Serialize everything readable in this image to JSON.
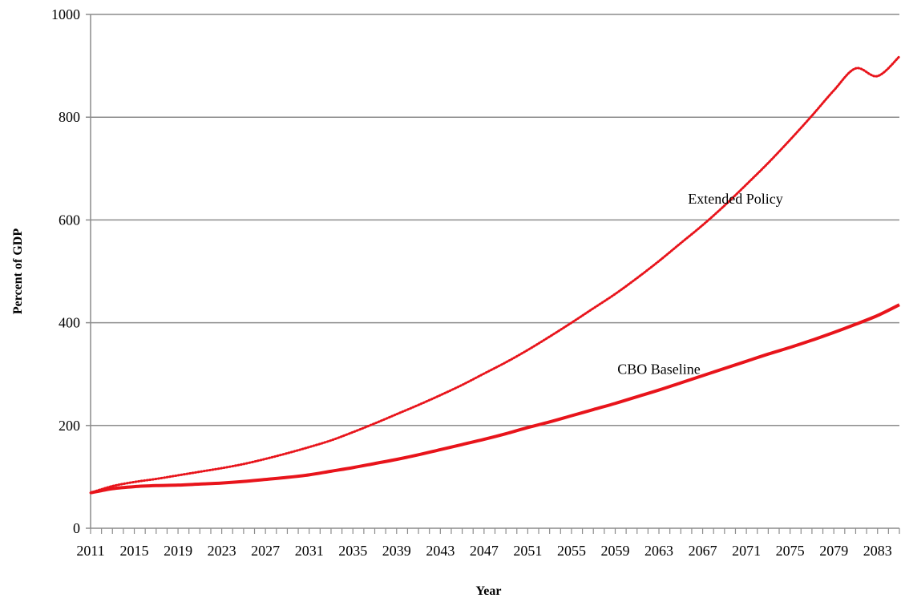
{
  "chart_data": {
    "type": "line",
    "title": "",
    "xlabel": "Year",
    "ylabel": "Percent of GDP",
    "xlim": [
      2011,
      2085
    ],
    "ylim": [
      0,
      1000
    ],
    "grid": true,
    "y_ticks": [
      0,
      200,
      400,
      600,
      800,
      1000
    ],
    "x_tick_labels": [
      "2011",
      "2015",
      "2019",
      "2023",
      "2027",
      "2031",
      "2035",
      "2039",
      "2043",
      "2047",
      "2051",
      "2055",
      "2059",
      "2063",
      "2067",
      "2071",
      "2075",
      "2079",
      "2083"
    ],
    "x_tick_values": [
      2011,
      2015,
      2019,
      2023,
      2027,
      2031,
      2035,
      2039,
      2043,
      2047,
      2051,
      2055,
      2059,
      2063,
      2067,
      2071,
      2075,
      2079,
      2083
    ],
    "series": [
      {
        "name": "Extended Policy",
        "style": "dotted",
        "color": "#e8141b",
        "x": [
          2011,
          2013,
          2015,
          2017,
          2019,
          2021,
          2023,
          2025,
          2027,
          2029,
          2031,
          2033,
          2035,
          2037,
          2039,
          2041,
          2043,
          2045,
          2047,
          2049,
          2051,
          2053,
          2055,
          2057,
          2059,
          2061,
          2063,
          2065,
          2067,
          2069,
          2071,
          2073,
          2075,
          2077,
          2079,
          2081,
          2083,
          2085
        ],
        "values": [
          69,
          82,
          90,
          96,
          103,
          110,
          117,
          125,
          135,
          146,
          158,
          171,
          187,
          204,
          222,
          240,
          259,
          279,
          301,
          323,
          347,
          373,
          400,
          428,
          456,
          487,
          520,
          555,
          590,
          628,
          669,
          711,
          756,
          803,
          852,
          895,
          880,
          918
        ]
      },
      {
        "name": "CBO Baseline",
        "style": "solid",
        "color": "#e8141b",
        "x": [
          2011,
          2013,
          2015,
          2017,
          2019,
          2021,
          2023,
          2025,
          2027,
          2029,
          2031,
          2033,
          2035,
          2037,
          2039,
          2041,
          2043,
          2045,
          2047,
          2049,
          2051,
          2053,
          2055,
          2057,
          2059,
          2061,
          2063,
          2065,
          2067,
          2069,
          2071,
          2073,
          2075,
          2077,
          2079,
          2081,
          2083,
          2085
        ],
        "values": [
          69,
          77,
          81,
          83,
          84,
          86,
          88,
          91,
          95,
          99,
          104,
          111,
          118,
          126,
          134,
          143,
          153,
          163,
          173,
          184,
          196,
          207,
          219,
          231,
          243,
          256,
          269,
          283,
          297,
          311,
          325,
          339,
          352,
          366,
          381,
          397,
          414,
          435
        ]
      }
    ],
    "annotations": [
      {
        "text": "Extended Policy",
        "x": 2070,
        "y": 632
      },
      {
        "text": "CBO Baseline",
        "x": 2063,
        "y": 300
      }
    ]
  }
}
